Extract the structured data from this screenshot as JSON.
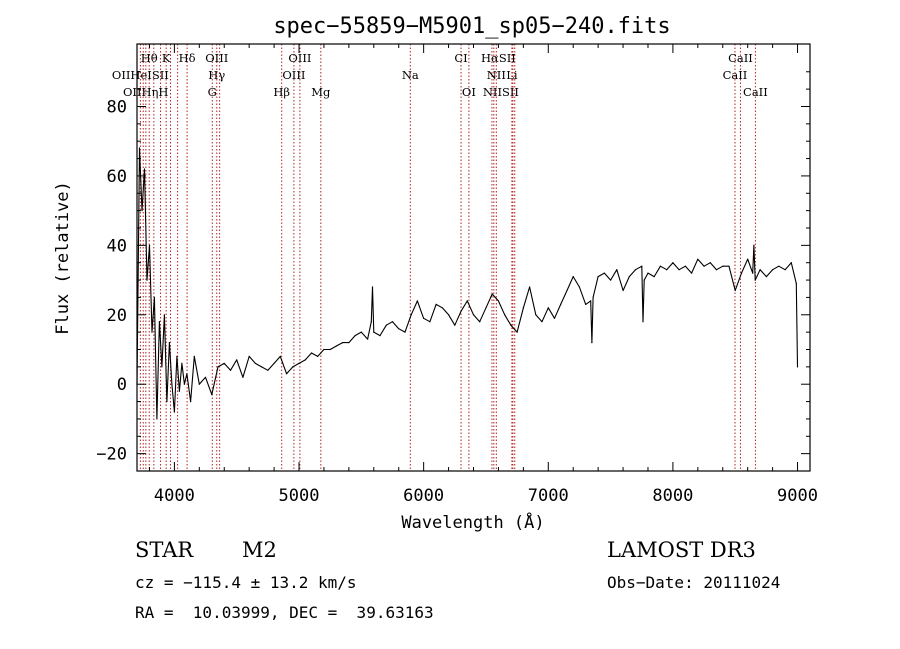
{
  "chart_data": {
    "type": "line",
    "title": "spec−55859−M5901_sp05−240.fits",
    "xlabel": "Wavelength (Å)",
    "ylabel": "Flux (relative)",
    "xlim": [
      3700,
      9100
    ],
    "ylim": [
      -25,
      98
    ],
    "xticks": [
      4000,
      5000,
      6000,
      7000,
      8000,
      9000
    ],
    "yticks": [
      -20,
      0,
      20,
      40,
      60,
      80
    ],
    "grid": false,
    "line_color": "#000000",
    "marker_color": "#b22222",
    "series": [
      {
        "name": "flux",
        "x": [
          3700,
          3720,
          3740,
          3760,
          3780,
          3800,
          3820,
          3840,
          3860,
          3880,
          3900,
          3920,
          3940,
          3960,
          3980,
          4000,
          4020,
          4040,
          4060,
          4080,
          4100,
          4130,
          4160,
          4200,
          4250,
          4300,
          4350,
          4400,
          4450,
          4500,
          4550,
          4600,
          4650,
          4700,
          4750,
          4800,
          4850,
          4900,
          4950,
          5000,
          5050,
          5100,
          5150,
          5200,
          5250,
          5300,
          5350,
          5400,
          5450,
          5500,
          5550,
          5580,
          5590,
          5600,
          5650,
          5700,
          5750,
          5800,
          5850,
          5900,
          5950,
          6000,
          6050,
          6100,
          6150,
          6200,
          6250,
          6300,
          6350,
          6400,
          6450,
          6500,
          6550,
          6600,
          6650,
          6700,
          6750,
          6800,
          6850,
          6900,
          6950,
          7000,
          7050,
          7100,
          7150,
          7200,
          7250,
          7300,
          7340,
          7350,
          7360,
          7400,
          7450,
          7500,
          7550,
          7600,
          7650,
          7700,
          7750,
          7760,
          7770,
          7800,
          7850,
          7900,
          7950,
          8000,
          8050,
          8100,
          8150,
          8200,
          8250,
          8300,
          8350,
          8400,
          8450,
          8500,
          8550,
          8600,
          8640,
          8650,
          8660,
          8700,
          8750,
          8800,
          8850,
          8900,
          8950,
          8990,
          9000
        ],
        "y": [
          0,
          68,
          50,
          62,
          30,
          40,
          15,
          25,
          -10,
          18,
          5,
          20,
          -5,
          12,
          0,
          -8,
          8,
          -2,
          6,
          0,
          3,
          -5,
          8,
          0,
          2,
          -3,
          5,
          6,
          4,
          7,
          2,
          8,
          6,
          5,
          4,
          6,
          8,
          3,
          5,
          6,
          7,
          9,
          8,
          10,
          10,
          11,
          12,
          12,
          14,
          15,
          13,
          18,
          28,
          15,
          14,
          17,
          18,
          16,
          15,
          20,
          24,
          19,
          18,
          23,
          22,
          20,
          17,
          21,
          24,
          20,
          18,
          22,
          26,
          24,
          20,
          17,
          15,
          22,
          28,
          20,
          18,
          22,
          19,
          23,
          27,
          31,
          28,
          23,
          24,
          12,
          25,
          31,
          32,
          30,
          33,
          27,
          31,
          33,
          34,
          18,
          30,
          32,
          31,
          34,
          33,
          35,
          33,
          34,
          32,
          36,
          34,
          35,
          33,
          34,
          34,
          27,
          32,
          36,
          32,
          40,
          30,
          33,
          31,
          33,
          34,
          33,
          35,
          29,
          5
        ]
      }
    ],
    "line_markers": [
      {
        "label": "Hθ",
        "x": 3798,
        "row": 0
      },
      {
        "label": "K",
        "x": 3934,
        "row": 0
      },
      {
        "label": "Hδ",
        "x": 4102,
        "row": 0
      },
      {
        "label": "OIII",
        "x": 4340,
        "row": 0
      },
      {
        "label": "OIII",
        "x": 5007,
        "row": 0
      },
      {
        "label": "CI",
        "x": 6300,
        "row": 0
      },
      {
        "label": "HαSII",
        "x": 6600,
        "row": 0
      },
      {
        "label": "CaII",
        "x": 8542,
        "row": 0
      },
      {
        "label": "OIIHeISII",
        "x": 3727,
        "row": 1
      },
      {
        "label": "Hγ",
        "x": 4340,
        "row": 1
      },
      {
        "label": "OIII",
        "x": 4959,
        "row": 1
      },
      {
        "label": "Na",
        "x": 5893,
        "row": 1
      },
      {
        "label": "NII",
        "x": 6583,
        "row": 1
      },
      {
        "label": "Li",
        "x": 6708,
        "row": 1
      },
      {
        "label": "CaII",
        "x": 8498,
        "row": 1
      },
      {
        "label": "OIIHηH",
        "x": 3770,
        "row": 2
      },
      {
        "label": "G",
        "x": 4304,
        "row": 2
      },
      {
        "label": "Hβ",
        "x": 4861,
        "row": 2
      },
      {
        "label": "Mg",
        "x": 5175,
        "row": 2
      },
      {
        "label": "OI",
        "x": 6363,
        "row": 2
      },
      {
        "label": "NIISII",
        "x": 6620,
        "row": 2
      },
      {
        "label": "CaII",
        "x": 8662,
        "row": 2
      }
    ],
    "marker_lines_x": [
      3727,
      3750,
      3771,
      3798,
      3835,
      3889,
      3934,
      3969,
      4026,
      4102,
      4304,
      4340,
      4363,
      4861,
      4959,
      5007,
      5175,
      5893,
      6300,
      6363,
      6548,
      6563,
      6583,
      6708,
      6716,
      6731,
      8498,
      8542,
      8662
    ]
  },
  "info": {
    "object_class": "STAR",
    "subclass": "M2",
    "survey": "LAMOST DR3",
    "cz": "cz = −115.4 ± 13.2 km/s",
    "obs_date": "Obs−Date: 20111024",
    "coords": "RA =  10.03999, DEC =  39.63163"
  }
}
